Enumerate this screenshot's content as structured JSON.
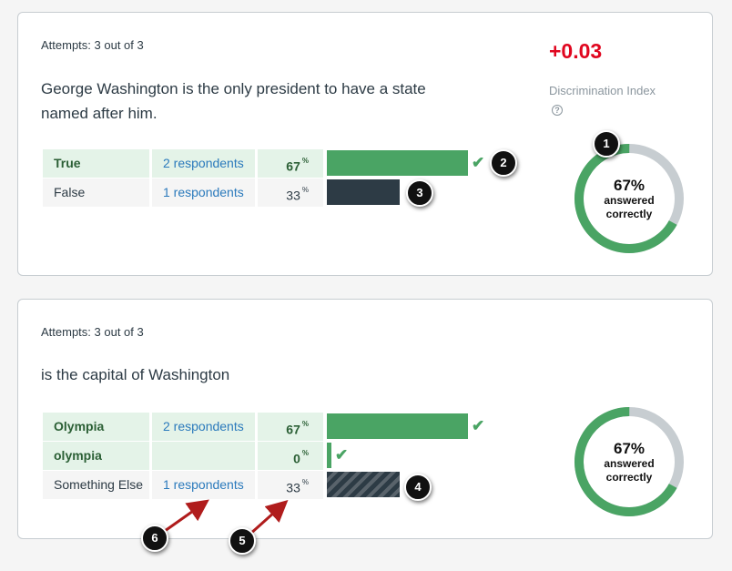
{
  "question1": {
    "attempts": "Attempts: 3 out of 3",
    "text": "George Washington is the only president to have a state named after him.",
    "discrimination_value": "+0.03",
    "discrimination_label": "Discrimination Index",
    "answers": [
      {
        "label": "True",
        "respondents": "2 respondents",
        "percent": "67",
        "correct": true
      },
      {
        "label": "False",
        "respondents": "1 respondents",
        "percent": "33",
        "correct": false
      }
    ],
    "donut": {
      "percent": "67%",
      "label": "answered correctly",
      "fraction": 0.67
    }
  },
  "question2": {
    "attempts": "Attempts: 3 out of 3",
    "text": "is the capital of Washington",
    "answers": [
      {
        "label": "Olympia",
        "respondents": "2 respondents",
        "percent": "67",
        "correct": true
      },
      {
        "label": "olympia",
        "respondents": "",
        "percent": "0",
        "correct": true
      },
      {
        "label": "Something Else",
        "respondents": "1 respondents",
        "percent": "33",
        "correct": false
      }
    ],
    "donut": {
      "percent": "67%",
      "label": "answered correctly",
      "fraction": 0.67
    }
  },
  "percent_sign": "%",
  "callouts": [
    "1",
    "2",
    "3",
    "4",
    "5",
    "6"
  ],
  "colors": {
    "correct": "#4aa464",
    "incorrect": "#2d3b45",
    "discrimination": "#e0061f",
    "link": "#2b7abc",
    "arrow": "#b01c1c"
  }
}
